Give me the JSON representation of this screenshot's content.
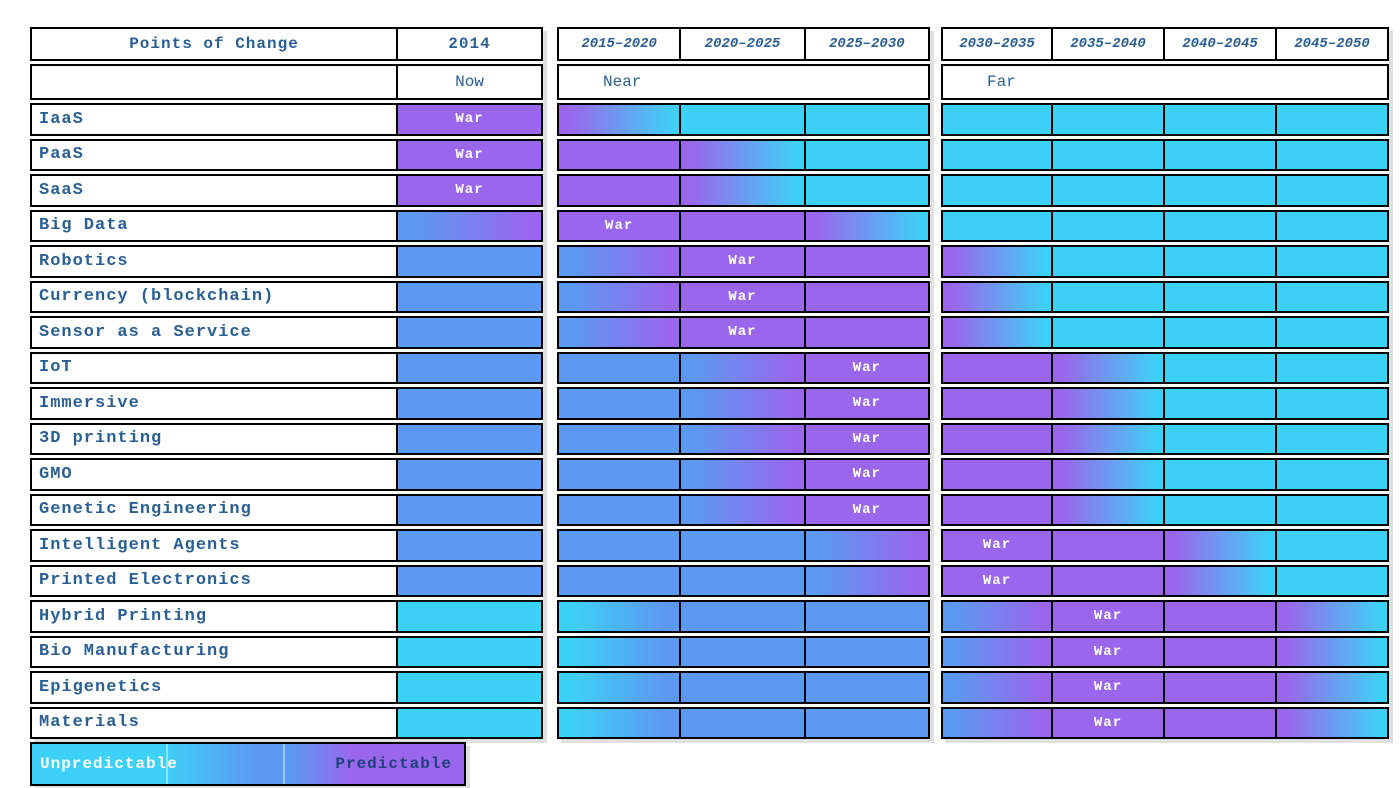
{
  "colors": {
    "cyan": "#3ED1F7",
    "blue": "#5C99F2",
    "purple": "#9A66EC",
    "text": "#2A5F93",
    "war_text": "#FFFFFF",
    "legend_right_text": "#20417C"
  },
  "chart_data": {
    "type": "heatmap",
    "title": "Points of Change",
    "war_label": "War",
    "columns": [
      "2014",
      "2015–2020",
      "2020–2025",
      "2025–2030",
      "2030–2035",
      "2035–2040",
      "2040–2045",
      "2045–2050"
    ],
    "column_groups": [
      {
        "label": "Now",
        "columns": [
          "2014"
        ]
      },
      {
        "label": "Near",
        "columns": [
          "2015–2020",
          "2020–2025",
          "2025–2030"
        ]
      },
      {
        "label": "Far",
        "columns": [
          "2030–2035",
          "2035–2040",
          "2040–2045",
          "2045–2050"
        ]
      }
    ],
    "cell_code_meaning": {
      "C": "cyan = unpredictable",
      "B": "blue = intermediate",
      "P": "purple = predictable",
      "W": "purple cell marked with 'War' (point of change)",
      "CB": "gradient cyan to blue",
      "BP": "gradient blue to purple",
      "PC": "gradient purple to cyan"
    },
    "rows": [
      {
        "label": "IaaS",
        "war_period": "2014",
        "cells": [
          "W",
          "PC",
          "C",
          "C",
          "C",
          "C",
          "C",
          "C"
        ]
      },
      {
        "label": "PaaS",
        "war_period": "2014",
        "cells": [
          "W",
          "P",
          "PC",
          "C",
          "C",
          "C",
          "C",
          "C"
        ]
      },
      {
        "label": "SaaS",
        "war_period": "2014",
        "cells": [
          "W",
          "P",
          "PC",
          "C",
          "C",
          "C",
          "C",
          "C"
        ]
      },
      {
        "label": "Big Data",
        "war_period": "2015–2020",
        "cells": [
          "BP",
          "W",
          "P",
          "PC",
          "C",
          "C",
          "C",
          "C"
        ]
      },
      {
        "label": "Robotics",
        "war_period": "2020–2025",
        "cells": [
          "B",
          "BP",
          "W",
          "P",
          "PC",
          "C",
          "C",
          "C"
        ]
      },
      {
        "label": "Currency (blockchain)",
        "war_period": "2020–2025",
        "cells": [
          "B",
          "BP",
          "W",
          "P",
          "PC",
          "C",
          "C",
          "C"
        ]
      },
      {
        "label": "Sensor as a Service",
        "war_period": "2020–2025",
        "cells": [
          "B",
          "BP",
          "W",
          "P",
          "PC",
          "C",
          "C",
          "C"
        ]
      },
      {
        "label": "IoT",
        "war_period": "2025–2030",
        "cells": [
          "B",
          "B",
          "BP",
          "W",
          "P",
          "PC",
          "C",
          "C"
        ]
      },
      {
        "label": "Immersive",
        "war_period": "2025–2030",
        "cells": [
          "B",
          "B",
          "BP",
          "W",
          "P",
          "PC",
          "C",
          "C"
        ]
      },
      {
        "label": "3D printing",
        "war_period": "2025–2030",
        "cells": [
          "B",
          "B",
          "BP",
          "W",
          "P",
          "PC",
          "C",
          "C"
        ]
      },
      {
        "label": "GMO",
        "war_period": "2025–2030",
        "cells": [
          "B",
          "B",
          "BP",
          "W",
          "P",
          "PC",
          "C",
          "C"
        ]
      },
      {
        "label": "Genetic Engineering",
        "war_period": "2025–2030",
        "cells": [
          "B",
          "B",
          "BP",
          "W",
          "P",
          "PC",
          "C",
          "C"
        ]
      },
      {
        "label": "Intelligent Agents",
        "war_period": "2030–2035",
        "cells": [
          "B",
          "B",
          "B",
          "BP",
          "W",
          "P",
          "PC",
          "C"
        ]
      },
      {
        "label": "Printed Electronics",
        "war_period": "2030–2035",
        "cells": [
          "B",
          "B",
          "B",
          "BP",
          "W",
          "P",
          "PC",
          "C"
        ]
      },
      {
        "label": "Hybrid Printing",
        "war_period": "2035–2040",
        "cells": [
          "C",
          "CB",
          "B",
          "B",
          "BP",
          "W",
          "P",
          "PC"
        ]
      },
      {
        "label": "Bio Manufacturing",
        "war_period": "2035–2040",
        "cells": [
          "C",
          "CB",
          "B",
          "B",
          "BP",
          "W",
          "P",
          "PC"
        ]
      },
      {
        "label": "Epigenetics",
        "war_period": "2035–2040",
        "cells": [
          "C",
          "CB",
          "B",
          "B",
          "BP",
          "W",
          "P",
          "PC"
        ]
      },
      {
        "label": "Materials",
        "war_period": "2035–2040",
        "cells": [
          "C",
          "CB",
          "B",
          "B",
          "BP",
          "W",
          "P",
          "PC"
        ]
      }
    ],
    "legend": {
      "left_label": "Unpredictable",
      "right_label": "Predictable",
      "scale": "cyan (unpredictable) through blue to purple (predictable)"
    }
  }
}
